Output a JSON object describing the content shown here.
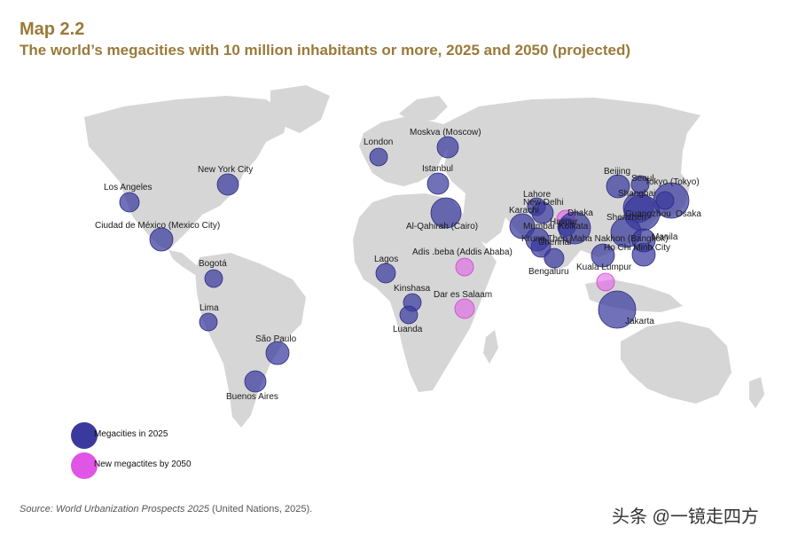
{
  "header": {
    "label": "Map 2.2",
    "title": "The world’s megacities with 10 million inhabitants or more, 2025 and 2050 (projected)"
  },
  "legend": {
    "megacity_2025": "Megacities in 2025",
    "new_2050": "New megactites by 2050"
  },
  "colors": {
    "megacity_2025": "#3a3a9e",
    "new_2050": "#e055e6",
    "land": "#d6d6d6"
  },
  "cities": [
    {
      "name": "Moskva (Moscow)",
      "type": "2025"
    },
    {
      "name": "London",
      "type": "2025"
    },
    {
      "name": "New York City",
      "type": "2025"
    },
    {
      "name": "Los Angeles",
      "type": "2025"
    },
    {
      "name": "Istanbul",
      "type": "2025"
    },
    {
      "name": "Ciudad de México (Mexico City)",
      "type": "2025"
    },
    {
      "name": "Al-Qahirah (Cairo)",
      "type": "2025"
    },
    {
      "name": "Bogotá",
      "type": "2025"
    },
    {
      "name": "Lagos",
      "type": "2025"
    },
    {
      "name": "Adis .beba (Addis Ababa)",
      "type": "2050"
    },
    {
      "name": "Lima",
      "type": "2025"
    },
    {
      "name": "Kinshasa",
      "type": "2025"
    },
    {
      "name": "Dar es Salaam",
      "type": "2050"
    },
    {
      "name": "Luanda",
      "type": "2025"
    },
    {
      "name": "São Paulo",
      "type": "2025"
    },
    {
      "name": "Buenos Aires",
      "type": "2025"
    },
    {
      "name": "Lahore",
      "type": "2025"
    },
    {
      "name": "New Delhi",
      "type": "2025"
    },
    {
      "name": "Karachi",
      "type": "2025"
    },
    {
      "name": "Hajipur",
      "type": "2050"
    },
    {
      "name": "Kolkata",
      "type": "2025"
    },
    {
      "name": "Dhaka",
      "type": "2025"
    },
    {
      "name": "Mumbai",
      "type": "2025"
    },
    {
      "name": "Krung Thep Maha Nakhon (Bangkok)",
      "type": "2025"
    },
    {
      "name": "Chennai",
      "type": "2025"
    },
    {
      "name": "Bengaluru",
      "type": "2025"
    },
    {
      "name": "Beijing",
      "type": "2025"
    },
    {
      "name": "Seoul",
      "type": "2025"
    },
    {
      "name": "Tokyo (Tokyo)",
      "type": "2025"
    },
    {
      "name": "Shanghai",
      "type": "2025"
    },
    {
      "name": "Osaka",
      "type": "2025"
    },
    {
      "name": "Guangzhou",
      "type": "2025"
    },
    {
      "name": "Shenzhen",
      "type": "2025"
    },
    {
      "name": "Manila",
      "type": "2025"
    },
    {
      "name": "Ho Chi Minh City",
      "type": "2025"
    },
    {
      "name": "Kuala Lumpur",
      "type": "2050"
    },
    {
      "name": "Jakarta",
      "type": "2025"
    }
  ],
  "source": {
    "italic": "Source: World Urbanization Prospects 2025",
    "rest": " (United Nations, 2025)."
  },
  "watermark": "头条 @一镜走四方"
}
